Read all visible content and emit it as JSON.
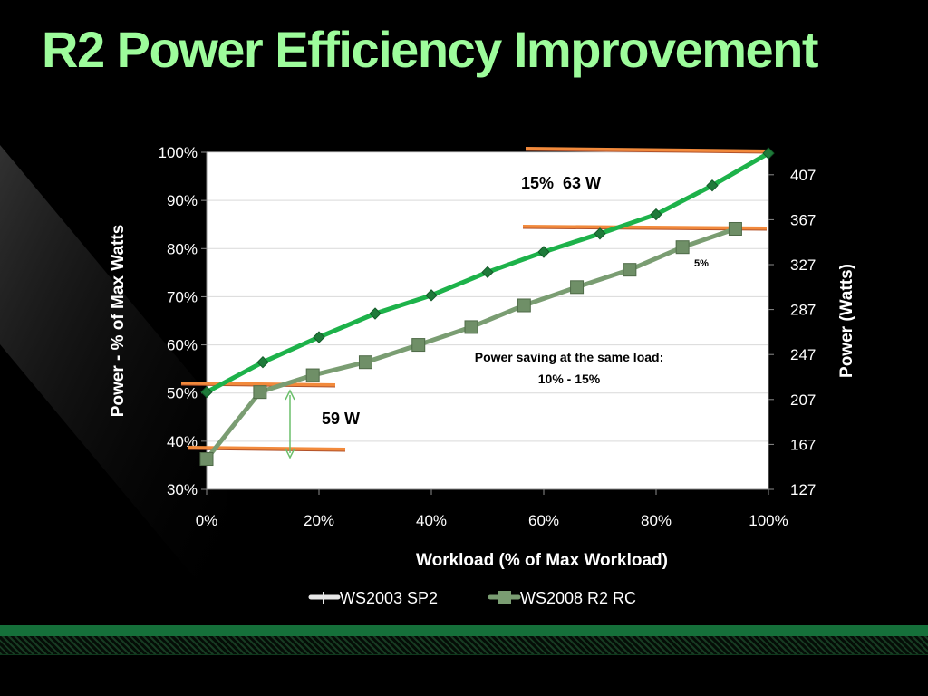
{
  "slide": {
    "title": "R2 Power Efficiency Improvement"
  },
  "colors": {
    "title": "#9dfc9b",
    "series_ws2003": "#1db24a",
    "series_ws2008": "#7a9d72",
    "callout_line": "#f28a3c",
    "grid": "#d9d9d9",
    "plot_bg": "#ffffff"
  },
  "chart_data": {
    "type": "line",
    "xlabel": "Workload (% of Max Workload)",
    "ylabel": "Power - % of Max Watts",
    "y2label": "Power (Watts)",
    "xlim": [
      0,
      100
    ],
    "ylim": [
      30,
      100
    ],
    "y2lim": [
      127,
      427
    ],
    "x_ticks": [
      "0%",
      "20%",
      "40%",
      "60%",
      "80%",
      "100%"
    ],
    "y_ticks": [
      "30%",
      "40%",
      "50%",
      "60%",
      "70%",
      "80%",
      "90%",
      "100%"
    ],
    "y2_ticks": [
      "127",
      "167",
      "207",
      "247",
      "287",
      "327",
      "367",
      "407"
    ],
    "grid": true,
    "legend_position": "bottom",
    "series": [
      {
        "name": "WS2003 SP2",
        "marker": "diamond",
        "x": [
          0,
          10,
          20,
          30,
          40,
          50,
          60,
          70,
          80,
          90,
          100
        ],
        "y": [
          50.2,
          56.4,
          61.6,
          66.5,
          70.3,
          75.1,
          79.3,
          83.1,
          87.1,
          93.1,
          99.8
        ]
      },
      {
        "name": "WS2008 R2 RC",
        "marker": "square",
        "x": [
          0,
          9.5,
          18.9,
          28.3,
          37.7,
          47.1,
          56.5,
          65.9,
          75.3,
          84.7,
          94.1
        ],
        "y": [
          36.3,
          50.2,
          53.7,
          56.4,
          60.0,
          63.7,
          68.2,
          72.0,
          75.6,
          80.3,
          84.1
        ]
      }
    ],
    "annotations": [
      {
        "text": "15%  63 W"
      },
      {
        "text": "5%"
      },
      {
        "text": "Power saving at the same load:"
      },
      {
        "text": "10% - 15%"
      },
      {
        "text": "59 W"
      }
    ]
  }
}
